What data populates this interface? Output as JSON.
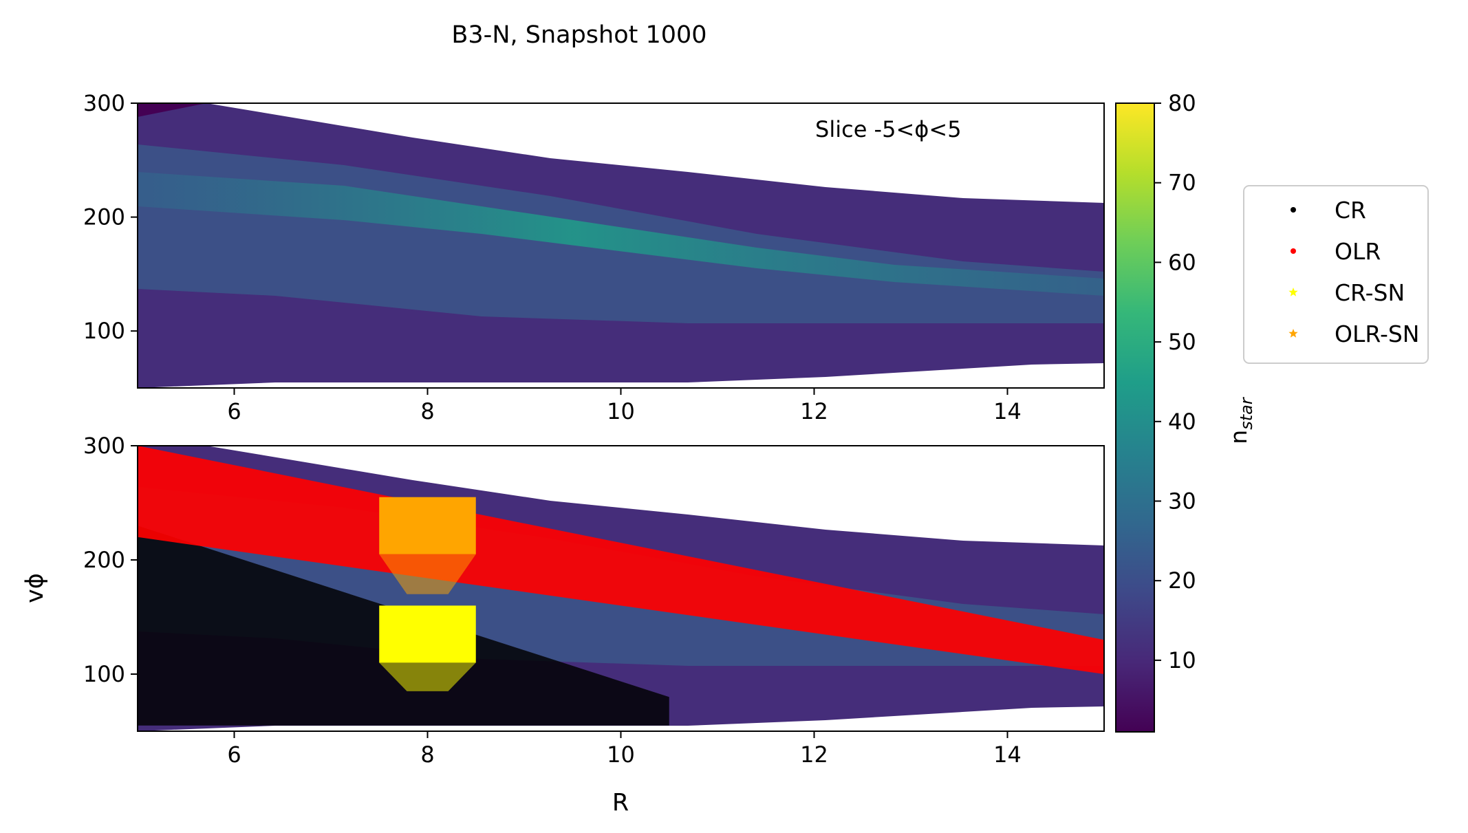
{
  "figure": {
    "title": "B3-N, Snapshot 1000"
  },
  "chart_data": [
    {
      "type": "heatmap",
      "panel": "top",
      "annotation": "Slice -5<ϕ<5",
      "xlabel": "",
      "ylabel": "",
      "xlim": [
        5,
        15
      ],
      "ylim": [
        50,
        300
      ],
      "xticks": [
        6,
        8,
        10,
        12,
        14
      ],
      "yticks": [
        100,
        200,
        300
      ],
      "density_ridges": [
        {
          "x": 5,
          "upper": 300,
          "lower": 55
        },
        {
          "x": 6,
          "upper": 300,
          "lower": 55
        },
        {
          "x": 8,
          "upper": 290,
          "lower": 55
        },
        {
          "x": 10,
          "upper": 270,
          "lower": 55
        },
        {
          "x": 12,
          "upper": 255,
          "lower": 55
        },
        {
          "x": 14,
          "upper": 240,
          "lower": 60
        },
        {
          "x": 15,
          "upper": 235,
          "lower": 60
        }
      ]
    },
    {
      "type": "heatmap",
      "panel": "bottom",
      "xlabel": "R",
      "ylabel": "vϕ",
      "xlim": [
        5,
        15
      ],
      "ylim": [
        50,
        300
      ],
      "xticks": [
        6,
        8,
        10,
        12,
        14
      ],
      "yticks": [
        100,
        200,
        300
      ],
      "series": [
        {
          "name": "CR",
          "color": "#000000",
          "marker": "dot",
          "band": {
            "x": [
              5,
              10.5
            ],
            "y_upper_at_start": 230,
            "y_upper_at_end": 80,
            "y_min": 55
          }
        },
        {
          "name": "OLR",
          "color": "#ff0000",
          "marker": "dot",
          "band": {
            "x": [
              5,
              15
            ],
            "upper_at_start": 300,
            "upper_at_end": 130,
            "lower_at_start": 220,
            "lower_at_end": 100
          }
        },
        {
          "name": "CR-SN",
          "color": "#ffff00",
          "marker": "star",
          "region": {
            "x": [
              7.5,
              8.5
            ],
            "y": [
              110,
              160
            ],
            "tail_min": 85
          }
        },
        {
          "name": "OLR-SN",
          "color": "#ffa500",
          "marker": "star",
          "region": {
            "x": [
              7.5,
              8.5
            ],
            "y": [
              205,
              255
            ],
            "tail_min": 170
          }
        }
      ]
    }
  ],
  "colorbar": {
    "label": "n",
    "label_sub": "star",
    "min": 1,
    "max": 80,
    "ticks": [
      10,
      20,
      30,
      40,
      50,
      60,
      70,
      80
    ],
    "colormap": "viridis",
    "stops": [
      "#440154",
      "#482878",
      "#3e4989",
      "#31688e",
      "#26828e",
      "#1f9e89",
      "#35b779",
      "#6ece58",
      "#b5de2b",
      "#fde725"
    ]
  },
  "legend": {
    "placement": "right",
    "entries": [
      {
        "label": "CR",
        "color": "#000000",
        "marker": "dot"
      },
      {
        "label": "OLR",
        "color": "#ff0000",
        "marker": "dot"
      },
      {
        "label": "CR-SN",
        "color": "#ffff00",
        "marker": "star"
      },
      {
        "label": "OLR-SN",
        "color": "#ffa500",
        "marker": "star"
      }
    ]
  }
}
